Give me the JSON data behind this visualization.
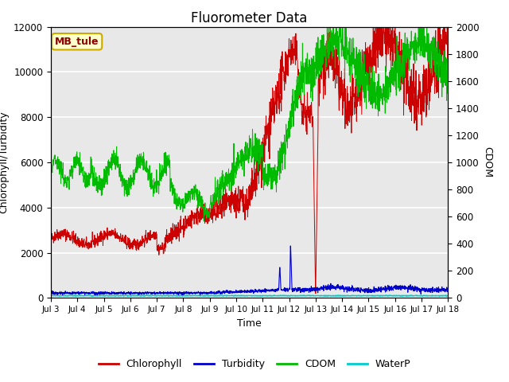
{
  "title": "Fluorometer Data",
  "xlabel": "Time",
  "ylabel_left": "Chlorophyll/Turbidity",
  "ylabel_right": "CDOM",
  "annotation": "MB_tule",
  "ylim_left": [
    0,
    12000
  ],
  "ylim_right": [
    0,
    2000
  ],
  "xtick_labels": [
    "Jul 3",
    "Jul 4",
    "Jul 5",
    "Jul 6",
    "Jul 7",
    "Jul 8",
    "Jul 9",
    "Jul 10",
    "Jul 11",
    "Jul 12",
    "Jul 13",
    "Jul 14",
    "Jul 15",
    "Jul 16",
    "Jul 17",
    "Jul 18"
  ],
  "colors": {
    "chlorophyll": "#cc0000",
    "turbidity": "#0000cc",
    "cdom": "#00bb00",
    "waterp": "#00cccc",
    "background": "#e8e8e8",
    "annotation_bg": "#ffffcc",
    "annotation_border": "#ccaa00"
  },
  "legend": [
    "Chlorophyll",
    "Turbidity",
    "CDOM",
    "WaterP"
  ],
  "title_fontsize": 12,
  "axis_fontsize": 9,
  "left_yticks": [
    0,
    2000,
    4000,
    6000,
    8000,
    10000,
    12000
  ],
  "right_yticks": [
    0,
    200,
    400,
    600,
    800,
    1000,
    1200,
    1400,
    1600,
    1800,
    2000
  ]
}
